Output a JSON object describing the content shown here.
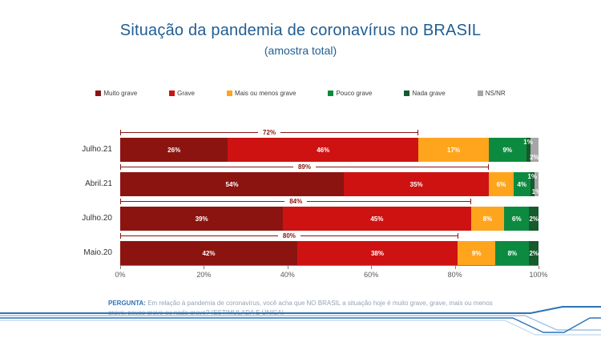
{
  "slide": {
    "title": "Situação da pandemia de coronavírus no BRASIL",
    "subtitle": "(amostra total)"
  },
  "chart_data": {
    "type": "bar",
    "orientation": "horizontal",
    "stacked": true,
    "title": "Situação da pandemia de coronavírus no BRASIL (amostra total)",
    "categories": [
      "Julho.21",
      "Abril.21",
      "Julho.20",
      "Maio.20"
    ],
    "series": [
      {
        "name": "Muito grave",
        "color": "#8B1410",
        "values": [
          26,
          54,
          39,
          42
        ]
      },
      {
        "name": "Grave",
        "color": "#CE1212",
        "values": [
          46,
          35,
          45,
          38
        ]
      },
      {
        "name": "Mais ou menos grave",
        "color": "#FFA51D",
        "values": [
          17,
          6,
          8,
          9
        ]
      },
      {
        "name": "Pouco grave",
        "color": "#0C8B40",
        "values": [
          9,
          4,
          6,
          8
        ]
      },
      {
        "name": "Nada grave",
        "color": "#165A2D",
        "values": [
          1,
          1,
          2,
          2
        ]
      },
      {
        "name": "NS/NR",
        "color": "#A6A6A6",
        "values": [
          2,
          1,
          0,
          0
        ]
      }
    ],
    "bracket_totals": [
      "72%",
      "89%",
      "84%",
      "80%"
    ],
    "bracket_note": "sum of Muito grave + Grave",
    "x_ticks": [
      "0%",
      "20%",
      "40%",
      "60%",
      "80%",
      "100%"
    ],
    "xlim": [
      0,
      100
    ],
    "value_suffix": "%",
    "legend_position": "top",
    "grid": false,
    "accent_colors": {
      "title_blue": "#215E93",
      "bracket_red": "#8B1410",
      "deco_blue": "#2E74B6",
      "deco_light_blue": "#9DC3E6"
    }
  },
  "footnote": {
    "label": "PERGUNTA:",
    "text": " Em relação à pandemia de coronavírus, você acha que NO BRASIL a situação hoje é muito grave, grave, mais ou menos grave, pouco grave ou nada grave? (ESTIMULADA E ÚNICA)"
  }
}
